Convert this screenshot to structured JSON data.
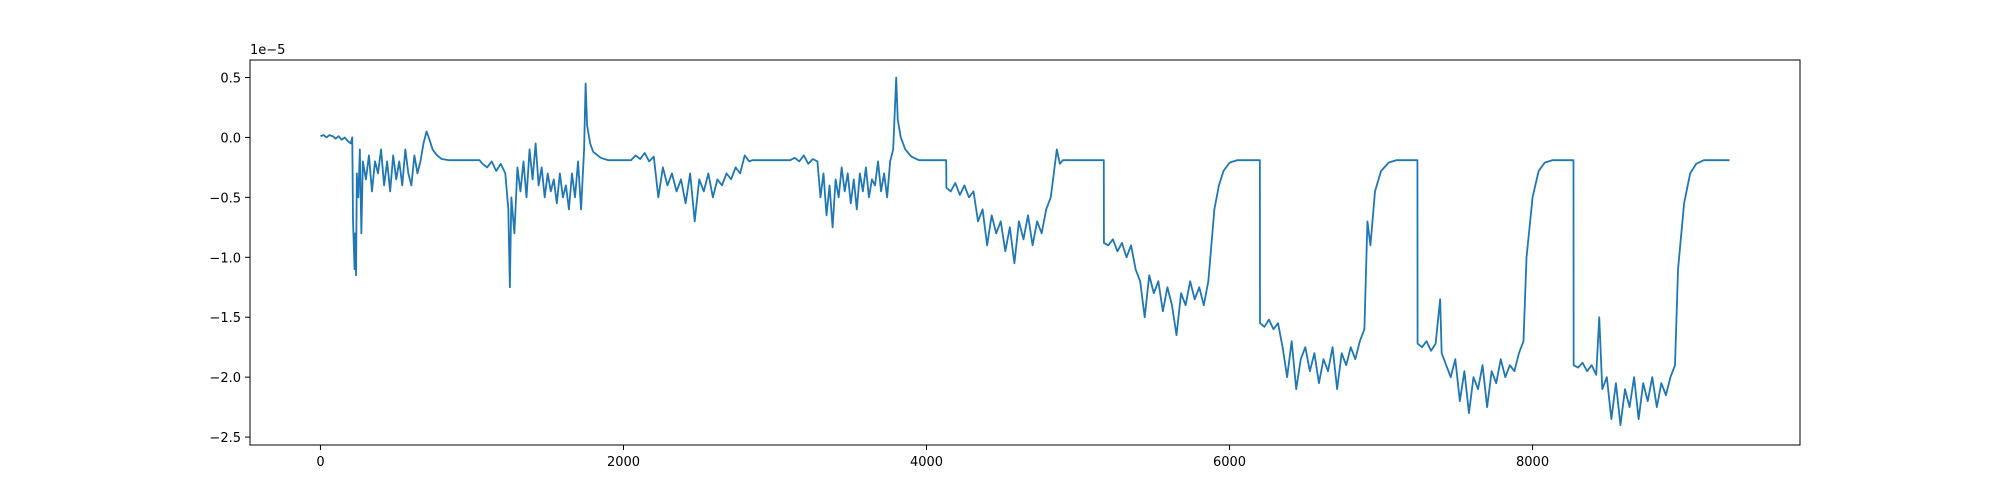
{
  "chart_data": {
    "type": "line",
    "y_offset_label": "1e−5",
    "x": [
      0,
      20,
      40,
      60,
      80,
      100,
      120,
      140,
      160,
      180,
      200,
      210,
      215,
      220,
      225,
      230,
      235,
      240,
      250,
      260,
      270,
      280,
      300,
      320,
      340,
      360,
      380,
      400,
      420,
      440,
      460,
      480,
      500,
      520,
      540,
      560,
      580,
      600,
      620,
      640,
      660,
      680,
      700,
      720,
      740,
      770,
      800,
      850,
      1050,
      1070,
      1100,
      1130,
      1160,
      1190,
      1220,
      1240,
      1250,
      1260,
      1280,
      1300,
      1320,
      1340,
      1360,
      1380,
      1400,
      1420,
      1440,
      1460,
      1480,
      1500,
      1520,
      1540,
      1560,
      1580,
      1600,
      1620,
      1640,
      1660,
      1680,
      1700,
      1720,
      1740,
      1750,
      1760,
      1780,
      1800,
      1850,
      1900,
      2050,
      2080,
      2110,
      2140,
      2170,
      2200,
      2230,
      2260,
      2290,
      2320,
      2350,
      2380,
      2410,
      2440,
      2470,
      2500,
      2530,
      2560,
      2590,
      2620,
      2650,
      2680,
      2710,
      2740,
      2770,
      2800,
      2830,
      2850,
      3100,
      3130,
      3160,
      3190,
      3220,
      3250,
      3280,
      3300,
      3320,
      3340,
      3360,
      3380,
      3400,
      3420,
      3440,
      3460,
      3480,
      3500,
      3520,
      3540,
      3560,
      3580,
      3600,
      3620,
      3640,
      3660,
      3680,
      3700,
      3720,
      3740,
      3760,
      3780,
      3800,
      3810,
      3830,
      3860,
      3900,
      3950,
      4130,
      4131,
      4160,
      4190,
      4220,
      4250,
      4280,
      4310,
      4340,
      4370,
      4400,
      4430,
      4460,
      4490,
      4520,
      4550,
      4580,
      4610,
      4640,
      4670,
      4700,
      4730,
      4760,
      4790,
      4820,
      4840,
      4860,
      4880,
      4900,
      5170,
      5171,
      5200,
      5230,
      5260,
      5290,
      5320,
      5350,
      5380,
      5410,
      5440,
      5470,
      5500,
      5530,
      5560,
      5590,
      5620,
      5650,
      5680,
      5710,
      5740,
      5770,
      5800,
      5830,
      5860,
      5880,
      5900,
      5930,
      5960,
      6000,
      6050,
      6200,
      6201,
      6230,
      6260,
      6290,
      6320,
      6350,
      6380,
      6410,
      6440,
      6470,
      6500,
      6530,
      6560,
      6590,
      6620,
      6650,
      6680,
      6710,
      6740,
      6770,
      6800,
      6830,
      6860,
      6890,
      6910,
      6930,
      6960,
      7000,
      7050,
      7100,
      7240,
      7241,
      7270,
      7300,
      7330,
      7360,
      7390,
      7400,
      7430,
      7460,
      7490,
      7520,
      7550,
      7580,
      7610,
      7640,
      7670,
      7700,
      7730,
      7760,
      7790,
      7820,
      7850,
      7880,
      7910,
      7940,
      7960,
      8000,
      8040,
      8080,
      8130,
      8270,
      8271,
      8300,
      8330,
      8360,
      8390,
      8420,
      8440,
      8460,
      8490,
      8520,
      8550,
      8580,
      8610,
      8640,
      8670,
      8700,
      8730,
      8760,
      8790,
      8820,
      8850,
      8880,
      8910,
      8940,
      8960,
      9000,
      9040,
      9080,
      9130,
      9300
    ],
    "series": [
      {
        "color": "#1f77b4",
        "values": [
          0.01,
          0.02,
          0.0,
          0.02,
          0.01,
          -0.01,
          0.01,
          -0.02,
          0.0,
          -0.03,
          -0.05,
          0.0,
          -0.7,
          -0.9,
          -1.1,
          -0.8,
          -1.15,
          -0.3,
          -0.5,
          -0.1,
          -0.8,
          -0.2,
          -0.35,
          -0.15,
          -0.45,
          -0.2,
          -0.3,
          -0.1,
          -0.4,
          -0.2,
          -0.45,
          -0.15,
          -0.35,
          -0.2,
          -0.4,
          -0.1,
          -0.3,
          -0.4,
          -0.15,
          -0.3,
          -0.2,
          -0.05,
          0.05,
          -0.02,
          -0.1,
          -0.15,
          -0.18,
          -0.19,
          -0.19,
          -0.22,
          -0.25,
          -0.2,
          -0.28,
          -0.22,
          -0.3,
          -0.6,
          -1.25,
          -0.5,
          -0.8,
          -0.25,
          -0.45,
          -0.2,
          -0.5,
          -0.1,
          -0.35,
          -0.05,
          -0.4,
          -0.25,
          -0.5,
          -0.3,
          -0.45,
          -0.35,
          -0.55,
          -0.3,
          -0.5,
          -0.4,
          -0.6,
          -0.3,
          -0.5,
          -0.2,
          -0.6,
          -0.1,
          0.45,
          0.1,
          -0.05,
          -0.12,
          -0.17,
          -0.19,
          -0.19,
          -0.15,
          -0.18,
          -0.13,
          -0.2,
          -0.16,
          -0.5,
          -0.25,
          -0.4,
          -0.3,
          -0.45,
          -0.35,
          -0.55,
          -0.3,
          -0.7,
          -0.35,
          -0.45,
          -0.3,
          -0.5,
          -0.35,
          -0.4,
          -0.3,
          -0.35,
          -0.25,
          -0.3,
          -0.15,
          -0.2,
          -0.19,
          -0.19,
          -0.17,
          -0.2,
          -0.15,
          -0.22,
          -0.18,
          -0.2,
          -0.5,
          -0.3,
          -0.65,
          -0.4,
          -0.75,
          -0.35,
          -0.5,
          -0.25,
          -0.45,
          -0.3,
          -0.55,
          -0.35,
          -0.6,
          -0.3,
          -0.45,
          -0.25,
          -0.5,
          -0.35,
          -0.4,
          -0.2,
          -0.45,
          -0.3,
          -0.5,
          -0.2,
          -0.1,
          0.5,
          0.15,
          0.0,
          -0.1,
          -0.16,
          -0.19,
          -0.19,
          -0.42,
          -0.45,
          -0.38,
          -0.48,
          -0.4,
          -0.5,
          -0.45,
          -0.7,
          -0.6,
          -0.9,
          -0.65,
          -0.8,
          -0.7,
          -0.95,
          -0.75,
          -1.05,
          -0.7,
          -0.85,
          -0.65,
          -0.9,
          -0.7,
          -0.8,
          -0.6,
          -0.5,
          -0.3,
          -0.1,
          -0.22,
          -0.19,
          -0.19,
          -0.88,
          -0.9,
          -0.85,
          -0.95,
          -0.88,
          -1.0,
          -0.9,
          -1.1,
          -1.2,
          -1.5,
          -1.15,
          -1.3,
          -1.2,
          -1.45,
          -1.25,
          -1.4,
          -1.65,
          -1.3,
          -1.4,
          -1.2,
          -1.35,
          -1.25,
          -1.4,
          -1.2,
          -0.9,
          -0.6,
          -0.4,
          -0.28,
          -0.21,
          -0.19,
          -0.19,
          -1.55,
          -1.58,
          -1.52,
          -1.6,
          -1.55,
          -1.75,
          -2.0,
          -1.7,
          -2.1,
          -1.85,
          -1.75,
          -1.95,
          -1.8,
          -2.05,
          -1.85,
          -1.95,
          -1.75,
          -2.1,
          -1.8,
          -1.9,
          -1.75,
          -1.85,
          -1.7,
          -1.6,
          -0.7,
          -0.9,
          -0.45,
          -0.28,
          -0.21,
          -0.19,
          -0.19,
          -1.72,
          -1.75,
          -1.7,
          -1.78,
          -1.72,
          -1.35,
          -1.8,
          -1.9,
          -2.0,
          -1.85,
          -2.2,
          -1.95,
          -2.3,
          -2.0,
          -2.1,
          -1.9,
          -2.25,
          -1.95,
          -2.05,
          -1.85,
          -2.0,
          -1.9,
          -1.95,
          -1.8,
          -1.7,
          -1.0,
          -0.5,
          -0.28,
          -0.21,
          -0.19,
          -0.19,
          -1.9,
          -1.92,
          -1.88,
          -1.95,
          -1.9,
          -1.98,
          -1.5,
          -2.1,
          -2.0,
          -2.35,
          -2.05,
          -2.4,
          -2.1,
          -2.25,
          -2.0,
          -2.35,
          -2.05,
          -2.2,
          -2.0,
          -2.25,
          -2.05,
          -2.15,
          -2.0,
          -1.9,
          -1.1,
          -0.55,
          -0.3,
          -0.22,
          -0.19,
          -0.19
        ]
      }
    ],
    "xlim": [
      -465,
      9765
    ],
    "xticks": [
      0,
      2000,
      4000,
      6000,
      8000
    ],
    "ylim": [
      -2.566,
      0.646
    ],
    "yticks": [
      {
        "value": -2.5,
        "label": "−2.5"
      },
      {
        "value": -2.0,
        "label": "−2.0"
      },
      {
        "value": -1.5,
        "label": "−1.5"
      },
      {
        "value": -1.0,
        "label": "−1.0"
      },
      {
        "value": -0.5,
        "label": "−0.5"
      },
      {
        "value": 0.0,
        "label": "0.0"
      },
      0.5
    ],
    "grid": false
  }
}
